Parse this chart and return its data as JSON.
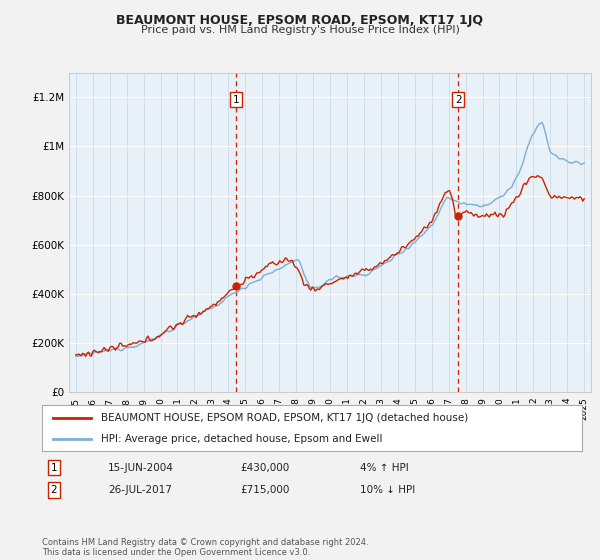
{
  "title": "BEAUMONT HOUSE, EPSOM ROAD, EPSOM, KT17 1JQ",
  "subtitle": "Price paid vs. HM Land Registry's House Price Index (HPI)",
  "fig_bg_color": "#f2f2f2",
  "plot_bg_color": "#e8f0f8",
  "ylim": [
    0,
    1300000
  ],
  "yticks": [
    0,
    200000,
    400000,
    600000,
    800000,
    1000000,
    1200000
  ],
  "ytick_labels": [
    "£0",
    "£200K",
    "£400K",
    "£600K",
    "£800K",
    "£1M",
    "£1.2M"
  ],
  "sale1_year": 2004.45,
  "sale1_price": 430000,
  "sale2_year": 2017.56,
  "sale2_price": 715000,
  "legend_line1": "BEAUMONT HOUSE, EPSOM ROAD, EPSOM, KT17 1JQ (detached house)",
  "legend_line2": "HPI: Average price, detached house, Epsom and Ewell",
  "note1_label": "1",
  "note1_date": "15-JUN-2004",
  "note1_price": "£430,000",
  "note1_hpi": "4% ↑ HPI",
  "note2_label": "2",
  "note2_date": "26-JUL-2017",
  "note2_price": "£715,000",
  "note2_hpi": "10% ↓ HPI",
  "footer": "Contains HM Land Registry data © Crown copyright and database right 2024.\nThis data is licensed under the Open Government Licence v3.0.",
  "red_color": "#cc2200",
  "blue_color": "#7ab0d4"
}
